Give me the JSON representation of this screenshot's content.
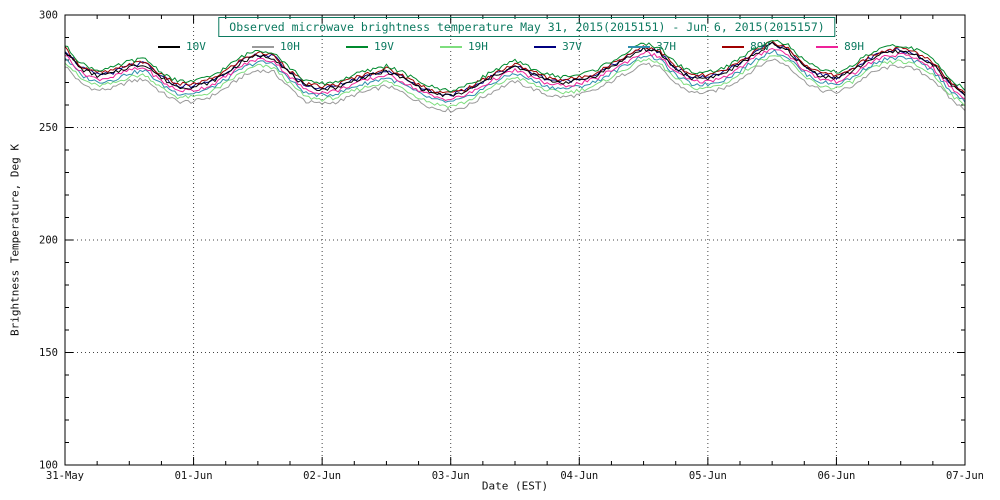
{
  "chart_data": {
    "type": "line",
    "title": "Observed microwave brightness temperature May 31, 2015(2015151) - Jun  6, 2015(2015157)",
    "xlabel": "Date (EST)",
    "ylabel": "Brightness Temperature, Deg K",
    "ylim": [
      100,
      300
    ],
    "y_ticks": [
      100,
      150,
      200,
      250,
      300
    ],
    "y_minor_step": 10,
    "x_total_hours": 168,
    "x_step_hours": 3,
    "x_minor_step_hours": 6,
    "x_ticks": [
      {
        "hour": 0,
        "label": "31-May"
      },
      {
        "hour": 24,
        "label": "01-Jun"
      },
      {
        "hour": 48,
        "label": "02-Jun"
      },
      {
        "hour": 72,
        "label": "03-Jun"
      },
      {
        "hour": 96,
        "label": "04-Jun"
      },
      {
        "hour": 120,
        "label": "05-Jun"
      },
      {
        "hour": 144,
        "label": "06-Jun"
      },
      {
        "hour": 168,
        "label": "07-Jun"
      }
    ],
    "grid": "dotted",
    "legend_position": "top-inside",
    "noise_amplitude": 0.9,
    "base_values": [
      284,
      276,
      273,
      274,
      277,
      278,
      272,
      268,
      268,
      270,
      274,
      279,
      282,
      281,
      274,
      268,
      267,
      268,
      271,
      273,
      275,
      272,
      268,
      265,
      264,
      266,
      270,
      274,
      277,
      274,
      271,
      270,
      271,
      273,
      277,
      281,
      285,
      283,
      276,
      272,
      272,
      274,
      278,
      283,
      287,
      284,
      277,
      273,
      272,
      275,
      280,
      283,
      284,
      282,
      278,
      270,
      264
    ],
    "series": [
      {
        "name": "10V",
        "color": "#000000",
        "offset": 0,
        "z": 7
      },
      {
        "name": "10H",
        "color": "#9a9a9a",
        "offset": -6.5,
        "z": 1
      },
      {
        "name": "19V",
        "color": "#008a2e",
        "offset": 2.5,
        "z": 8
      },
      {
        "name": "19H",
        "color": "#7ede7e",
        "offset": -4.5,
        "z": 2
      },
      {
        "name": "37V",
        "color": "#000080",
        "offset": 0.5,
        "z": 5
      },
      {
        "name": "37H",
        "color": "#2f8fae",
        "offset": -2.8,
        "z": 3
      },
      {
        "name": "89V",
        "color": "#a00000",
        "offset": 1.2,
        "z": 6
      },
      {
        "name": "89H",
        "color": "#ee2299",
        "offset": -1.5,
        "z": 4
      }
    ]
  }
}
